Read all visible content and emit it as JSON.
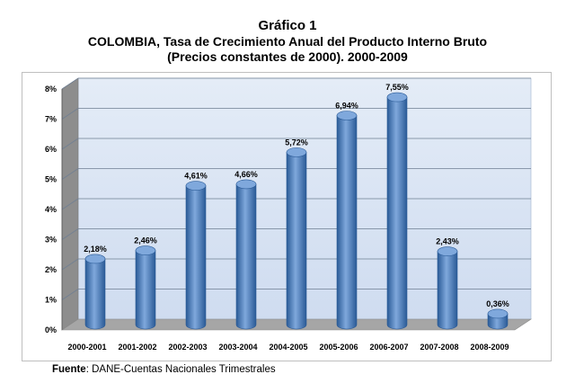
{
  "chart_data": {
    "type": "bar",
    "title": "Gráfico 1",
    "subtitle_line1": "COLOMBIA, Tasa de Crecimiento Anual del Producto Interno Bruto",
    "subtitle_line2": "(Precios constantes de 2000). 2000-2009",
    "categories": [
      "2000-2001",
      "2001-2002",
      "2002-2003",
      "2003-2004",
      "2004-2005",
      "2005-2006",
      "2006-2007",
      "2007-2008",
      "2008-2009"
    ],
    "values": [
      2.18,
      2.46,
      4.61,
      4.66,
      5.72,
      6.94,
      7.55,
      2.43,
      0.36
    ],
    "data_labels": [
      "2,18%",
      "2,46%",
      "4,61%",
      "4,66%",
      "5,72%",
      "6,94%",
      "7,55%",
      "2,43%",
      "0,36%"
    ],
    "y_ticks": [
      "0%",
      "1%",
      "2%",
      "3%",
      "4%",
      "5%",
      "6%",
      "7%",
      "8%"
    ],
    "ylim": [
      0,
      8
    ],
    "grid": true,
    "colors": {
      "bar": "#4a7ebb",
      "bar_dark": "#2a5a96",
      "bar_light": "#7fa8dc",
      "wall": "#cfdcf0",
      "floor": "#a6a6a6"
    }
  },
  "source": {
    "label": "Fuente",
    "text": ": DANE-Cuentas Nacionales Trimestrales"
  }
}
